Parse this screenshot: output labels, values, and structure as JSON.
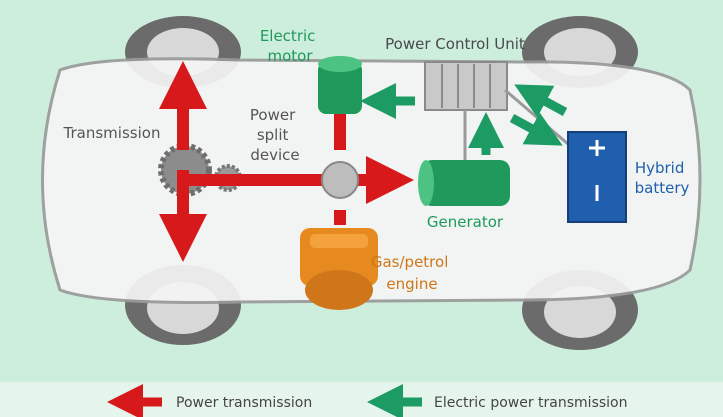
{
  "nodes": [
    {
      "label": [
        "Electric",
        "motor"
      ]
    },
    {
      "label": [
        "Power Control Unit"
      ]
    },
    {
      "label": [
        "Transmission"
      ]
    },
    {
      "label": [
        "Power",
        "split",
        "device"
      ]
    },
    {
      "label": [
        "Hybrid",
        "battery"
      ]
    },
    {
      "label": [
        "Generator"
      ]
    },
    {
      "label": [
        "Gas/petrol",
        "engine"
      ]
    }
  ],
  "legend": [
    {
      "label": "Power transmission"
    },
    {
      "label": "Electric power transmission"
    }
  ]
}
